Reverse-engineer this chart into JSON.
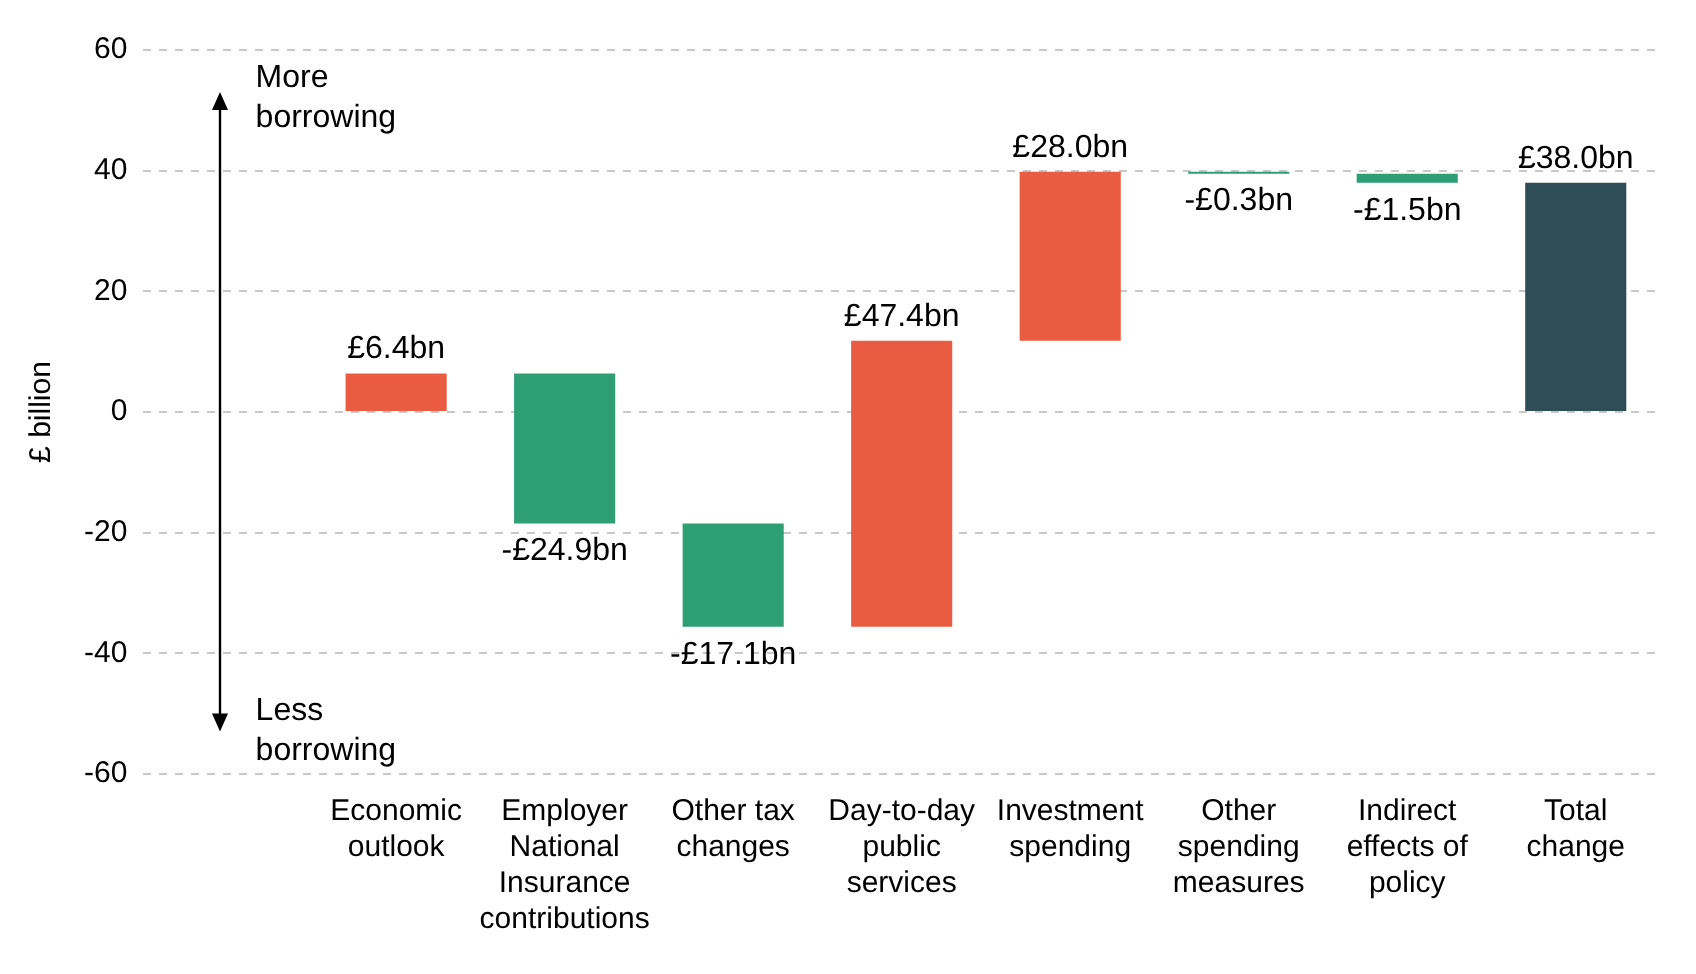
{
  "chart_data": {
    "type": "bar",
    "ylabel": "£ billion",
    "categories": [
      null,
      "Economic outlook",
      "Employer National Insurance contributions",
      "Other tax changes",
      "Day-to-day public services",
      "Investment spending",
      "Other spending measures",
      "Indirect effects of policy",
      "Total change"
    ],
    "values": [
      null,
      6.4,
      -24.9,
      -17.1,
      47.4,
      28.0,
      -0.3,
      -1.5,
      38.0
    ],
    "base": [
      null,
      0,
      6.4,
      -18.5,
      -35.6,
      11.8,
      39.8,
      39.5,
      0
    ],
    "colors": [
      "#ea5c42",
      "#ea5c42",
      "#2e9e74",
      "#2e9e74",
      "#ea5c42",
      "#ea5c42",
      "#2e9e74",
      "#2e9e74",
      "#2f4d55"
    ],
    "value_labels": [
      null,
      "£6.4bn",
      "-£24.9bn",
      "-£17.1bn",
      "£47.4bn",
      "£28.0bn",
      "-£0.3bn",
      "-£1.5bn",
      "£38.0bn"
    ],
    "ylim": [
      -60,
      60
    ],
    "yticks": [
      -60,
      -40,
      -20,
      0,
      20,
      40,
      60
    ],
    "grid": "y",
    "annotations": [
      "More borrowing",
      "Less borrowing"
    ]
  }
}
